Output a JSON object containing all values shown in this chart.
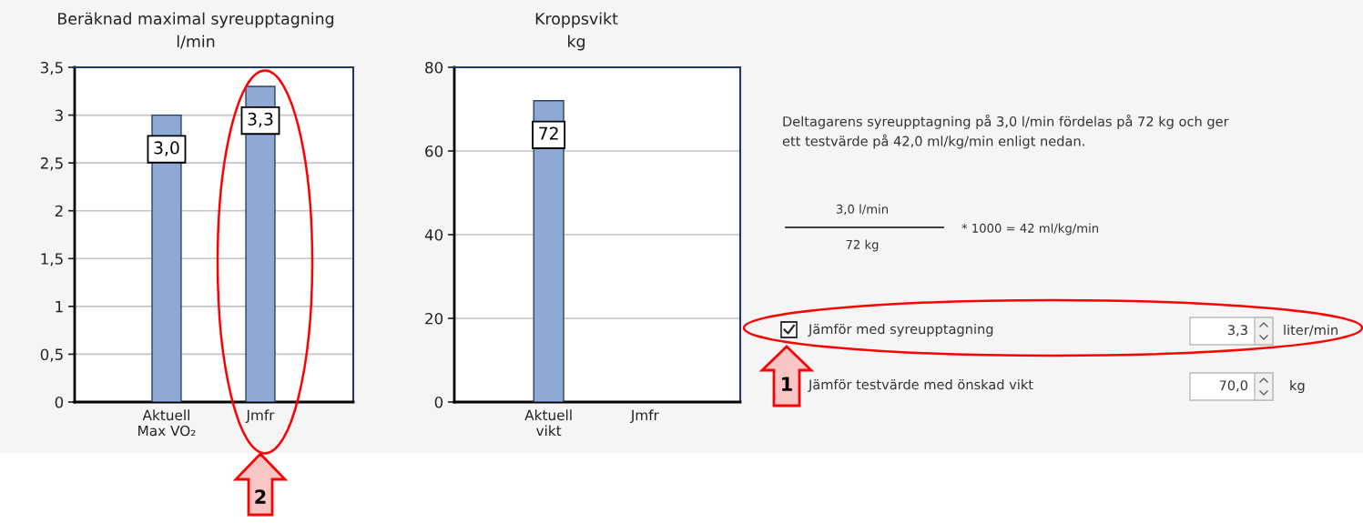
{
  "chart_data": [
    {
      "type": "bar",
      "title": "Beräknad maximal syreupptagning",
      "subtitle": "l/min",
      "categories": [
        "Aktuell\nMax VO₂",
        "Jmfr"
      ],
      "values": [
        3.0,
        3.3
      ],
      "value_labels": [
        "3,0",
        "3,3"
      ],
      "color": "#8eaad4",
      "ylim": [
        0,
        3.5
      ],
      "yticks": [
        0,
        {
          "value": 0.5,
          "label": "0,5"
        },
        1,
        {
          "value": 1.5,
          "label": "1,5"
        },
        2,
        {
          "value": 2.5,
          "label": "2,5"
        },
        3,
        {
          "value": 3.5,
          "label": "3,5"
        }
      ],
      "grid": "y",
      "annotations": [
        "2"
      ]
    },
    {
      "type": "bar",
      "title": "Kroppsvikt",
      "subtitle": "kg",
      "categories": [
        "Aktuell\nvikt",
        "Jmfr"
      ],
      "values": [
        72,
        null
      ],
      "value_labels": [
        "72",
        null
      ],
      "color": "#8eaad4",
      "ylim": [
        0,
        80
      ],
      "yticks": [
        0,
        20,
        40,
        60,
        80
      ],
      "grid": "y"
    },
    {
      "type": "other",
      "annotations": [
        "Deltagarens syreupptagning på 3,0 l/min fördelas på 72 kg och ger\nett testvärde på 42,0 ml/kg/min enligt nedan.",
        "3,0 l/min",
        "72 kg",
        "* 1000 = 42 ml/kg/min",
        "Jämför med syreupptagning",
        "3,3",
        "liter/min",
        "Jämför testvärde med önskad vikt",
        "70,0",
        "kg",
        "1"
      ]
    }
  ]
}
